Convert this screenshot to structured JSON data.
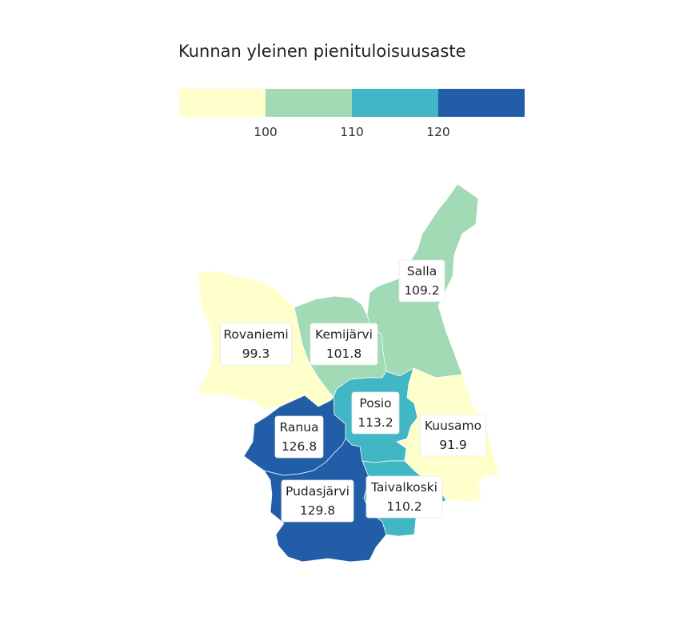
{
  "legend": {
    "title": "Kunnan yleinen pienituloisuusaste",
    "breaks": [
      "100",
      "110",
      "120"
    ],
    "colors": [
      "#ffffcc",
      "#a1dab4",
      "#41b6c4",
      "#225ea8"
    ],
    "position": "top"
  },
  "chart_data": {
    "type": "choropleth",
    "title": "Kunnan yleinen pienituloisuusaste",
    "classes": [
      {
        "min": null,
        "max": 100,
        "color": "#ffffcc"
      },
      {
        "min": 100,
        "max": 110,
        "color": "#a1dab4"
      },
      {
        "min": 110,
        "max": 120,
        "color": "#41b6c4"
      },
      {
        "min": 120,
        "max": null,
        "color": "#225ea8"
      }
    ],
    "regions": [
      {
        "name": "Salla",
        "value": "109.2",
        "color": "#a1dab4"
      },
      {
        "name": "Rovaniemi",
        "value": "99.3",
        "color": "#ffffcc"
      },
      {
        "name": "Kemijärvi",
        "value": "101.8",
        "color": "#a1dab4"
      },
      {
        "name": "Posio",
        "value": "113.2",
        "color": "#41b6c4"
      },
      {
        "name": "Kuusamo",
        "value": "91.9",
        "color": "#ffffcc"
      },
      {
        "name": "Ranua",
        "value": "126.8",
        "color": "#225ea8"
      },
      {
        "name": "Pudasjärvi",
        "value": "129.8",
        "color": "#225ea8"
      },
      {
        "name": "Taivalkoski",
        "value": "110.2",
        "color": "#41b6c4"
      }
    ]
  }
}
